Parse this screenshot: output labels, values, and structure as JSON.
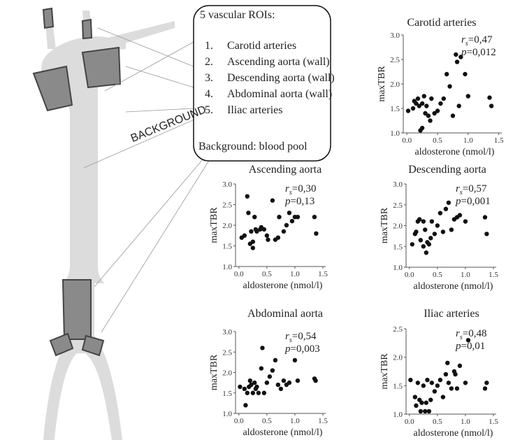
{
  "diagram": {
    "box_title": "5 vascular ROIs:",
    "items": [
      {
        "number": "1.",
        "label": "Carotid arteries"
      },
      {
        "number": "2.",
        "label": "Ascending aorta (wall)"
      },
      {
        "number": "3.",
        "label": "Descending aorta (wall)"
      },
      {
        "number": "4.",
        "label": "Abdominal aorta (wall)"
      },
      {
        "number": "5.",
        "label": "Iliac arteries"
      }
    ],
    "background_note": "Background: blood pool",
    "background_label": "BACKGROUND"
  },
  "chart_data": [
    {
      "type": "scatter",
      "title": "Carotid arteries",
      "x_label": "aldosterone (nmol/l)",
      "y_label": "maxTBR",
      "r_symbol": "r",
      "r_subscript": "s",
      "r_value": "=0,47",
      "p_symbol": "p",
      "p_value": "=0,012",
      "color": "#111111",
      "xlim": [
        -0.06,
        1.55
      ],
      "ylim": [
        1.0,
        3.0
      ],
      "xticks": [
        {
          "value": 0,
          "label": "0.0"
        },
        {
          "value": 0.5,
          "label": "0.5"
        },
        {
          "value": 1,
          "label": "1.0"
        },
        {
          "value": 1.5,
          "label": "1.5"
        }
      ],
      "yticks": [
        {
          "value": 1,
          "label": "1.0"
        },
        {
          "value": 1.5,
          "label": "1.5"
        },
        {
          "value": 2,
          "label": "2.0"
        },
        {
          "value": 2.5,
          "label": "2.5"
        },
        {
          "value": 3,
          "label": "3.0"
        }
      ],
      "x": [
        0.02,
        0.1,
        0.12,
        0.15,
        0.18,
        0.2,
        0.22,
        0.25,
        0.25,
        0.28,
        0.3,
        0.32,
        0.35,
        0.38,
        0.4,
        0.45,
        0.5,
        0.55,
        0.6,
        0.65,
        0.7,
        0.75,
        0.8,
        0.82,
        0.85,
        0.88,
        0.95,
        1.0,
        1.35,
        1.38
      ],
      "y": [
        1.45,
        1.5,
        1.65,
        1.6,
        1.7,
        1.55,
        1.05,
        1.1,
        1.6,
        1.75,
        1.4,
        1.55,
        1.35,
        1.25,
        1.7,
        1.4,
        1.45,
        1.6,
        1.7,
        2.2,
        1.95,
        1.35,
        2.6,
        2.45,
        1.55,
        2.55,
        2.2,
        1.75,
        1.72,
        1.55
      ]
    },
    {
      "type": "scatter",
      "title": "Ascending aorta",
      "x_label": "aldosterone (nmol/l)",
      "y_label": "maxTBR",
      "r_symbol": "r",
      "r_subscript": "s",
      "r_value": "=0,30",
      "p_symbol": "p",
      "p_value": "=0,13",
      "color": "#111111",
      "xlim": [
        -0.06,
        1.55
      ],
      "ylim": [
        1.0,
        3.0
      ],
      "xticks": [
        {
          "value": 0,
          "label": "0.0"
        },
        {
          "value": 0.5,
          "label": "0.5"
        },
        {
          "value": 1,
          "label": "1.0"
        },
        {
          "value": 1.5,
          "label": "1.5"
        }
      ],
      "yticks": [
        {
          "value": 1,
          "label": "1.0"
        },
        {
          "value": 1.5,
          "label": "1.5"
        },
        {
          "value": 2,
          "label": "2.0"
        },
        {
          "value": 2.5,
          "label": "2.5"
        },
        {
          "value": 3,
          "label": "3.0"
        }
      ],
      "x": [
        0.05,
        0.1,
        0.15,
        0.17,
        0.2,
        0.22,
        0.25,
        0.25,
        0.28,
        0.3,
        0.32,
        0.38,
        0.4,
        0.45,
        0.5,
        0.52,
        0.6,
        0.65,
        0.7,
        0.72,
        0.8,
        0.85,
        0.9,
        0.95,
        1.0,
        1.05,
        1.35,
        1.38
      ],
      "y": [
        1.7,
        1.75,
        2.7,
        2.3,
        1.55,
        1.85,
        1.45,
        1.6,
        2.2,
        1.9,
        1.85,
        1.9,
        1.95,
        1.9,
        1.75,
        1.65,
        2.6,
        1.65,
        1.7,
        2.2,
        1.85,
        2.0,
        2.3,
        2.1,
        2.2,
        2.2,
        2.2,
        1.8
      ]
    },
    {
      "type": "scatter",
      "title": "Descending aorta",
      "x_label": "aldosterone (nmol/l)",
      "y_label": "maxTBR",
      "r_symbol": "r",
      "r_subscript": "s",
      "r_value": "=0,57",
      "p_symbol": "p",
      "p_value": "=0,001",
      "color": "#111111",
      "xlim": [
        -0.06,
        1.55
      ],
      "ylim": [
        1.0,
        3.0
      ],
      "xticks": [
        {
          "value": 0,
          "label": "0.0"
        },
        {
          "value": 0.5,
          "label": "0.5"
        },
        {
          "value": 1,
          "label": "1.0"
        },
        {
          "value": 1.5,
          "label": "1.5"
        }
      ],
      "yticks": [
        {
          "value": 1,
          "label": "1.0"
        },
        {
          "value": 1.5,
          "label": "1.5"
        },
        {
          "value": 2,
          "label": "2.0"
        },
        {
          "value": 2.5,
          "label": "2.5"
        },
        {
          "value": 3,
          "label": "3.0"
        }
      ],
      "x": [
        0.05,
        0.1,
        0.12,
        0.15,
        0.18,
        0.2,
        0.25,
        0.25,
        0.28,
        0.3,
        0.32,
        0.35,
        0.38,
        0.4,
        0.45,
        0.5,
        0.55,
        0.6,
        0.65,
        0.7,
        0.75,
        0.8,
        0.85,
        0.9,
        1.0,
        1.35,
        1.38
      ],
      "y": [
        1.55,
        1.8,
        1.85,
        2.1,
        2.15,
        1.65,
        1.5,
        2.1,
        1.9,
        1.35,
        1.6,
        1.55,
        1.7,
        2.1,
        1.8,
        2.0,
        2.3,
        1.85,
        2.4,
        2.55,
        1.9,
        2.15,
        2.2,
        2.25,
        2.1,
        2.2,
        1.8
      ]
    },
    {
      "type": "scatter",
      "title": "Abdominal aorta",
      "x_label": "aldosterone (nmol/l)",
      "y_label": "maxTBR",
      "r_symbol": "r",
      "r_subscript": "s",
      "r_value": "=0,54",
      "p_symbol": "p",
      "p_value": "=0,003",
      "color": "#111111",
      "xlim": [
        -0.06,
        1.55
      ],
      "ylim": [
        1.0,
        3.0
      ],
      "xticks": [
        {
          "value": 0,
          "label": "0.0"
        },
        {
          "value": 0.5,
          "label": "0.5"
        },
        {
          "value": 1,
          "label": "1.0"
        },
        {
          "value": 1.5,
          "label": "1.5"
        }
      ],
      "yticks": [
        {
          "value": 1,
          "label": "1.0"
        },
        {
          "value": 1.5,
          "label": "1.5"
        },
        {
          "value": 2,
          "label": "2.0"
        },
        {
          "value": 2.5,
          "label": "2.5"
        },
        {
          "value": 3,
          "label": "3.0"
        }
      ],
      "x": [
        0.02,
        0.1,
        0.12,
        0.15,
        0.18,
        0.2,
        0.22,
        0.25,
        0.28,
        0.3,
        0.32,
        0.35,
        0.4,
        0.42,
        0.45,
        0.5,
        0.55,
        0.6,
        0.65,
        0.7,
        0.75,
        0.8,
        0.85,
        0.9,
        1.0,
        1.05,
        1.35,
        1.37
      ],
      "y": [
        1.65,
        1.6,
        1.2,
        1.5,
        1.65,
        1.8,
        1.7,
        1.5,
        1.75,
        1.6,
        1.65,
        1.5,
        2.1,
        2.6,
        1.5,
        1.75,
        1.9,
        2.05,
        2.3,
        1.7,
        1.6,
        1.8,
        1.7,
        1.75,
        2.3,
        1.8,
        1.85,
        1.8
      ]
    },
    {
      "type": "scatter",
      "title": "Iliac arteries",
      "x_label": "aldosterone (nmol/l)",
      "y_label": "maxTBR",
      "r_symbol": "r",
      "r_subscript": "s",
      "r_value": "=0,48",
      "p_symbol": "p",
      "p_value": "=0,01",
      "color": "#111111",
      "xlim": [
        -0.06,
        1.55
      ],
      "ylim": [
        1.0,
        2.5
      ],
      "xticks": [
        {
          "value": 0,
          "label": "0.0"
        },
        {
          "value": 0.5,
          "label": "0.5"
        },
        {
          "value": 1,
          "label": "1.0"
        },
        {
          "value": 1.5,
          "label": "1.5"
        }
      ],
      "yticks": [
        {
          "value": 1,
          "label": "1.0"
        },
        {
          "value": 1.5,
          "label": "1.5"
        },
        {
          "value": 2,
          "label": "2.0"
        },
        {
          "value": 2.5,
          "label": "2.5"
        }
      ],
      "x": [
        0.02,
        0.1,
        0.12,
        0.15,
        0.18,
        0.2,
        0.22,
        0.25,
        0.28,
        0.3,
        0.32,
        0.35,
        0.38,
        0.4,
        0.45,
        0.5,
        0.55,
        0.6,
        0.65,
        0.68,
        0.7,
        0.75,
        0.8,
        0.82,
        0.85,
        0.9,
        1.0,
        1.05,
        1.35,
        1.38
      ],
      "y": [
        1.6,
        1.3,
        1.15,
        1.55,
        1.25,
        1.05,
        1.2,
        1.5,
        1.05,
        1.2,
        1.6,
        1.05,
        1.25,
        1.55,
        1.4,
        1.5,
        1.6,
        1.3,
        1.7,
        1.9,
        1.55,
        1.45,
        1.75,
        1.7,
        1.45,
        1.85,
        1.55,
        2.3,
        1.45,
        1.55
      ]
    }
  ]
}
